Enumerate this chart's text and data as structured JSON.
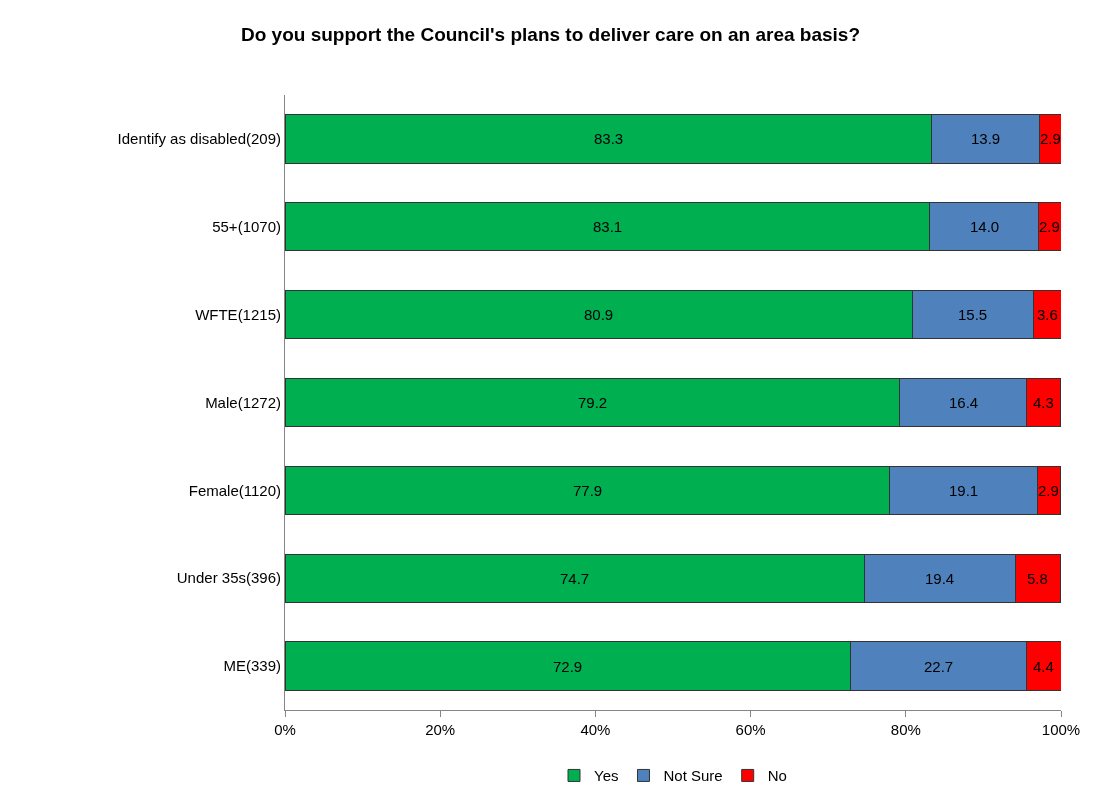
{
  "chart_data": {
    "type": "bar",
    "title": "Do you support the Council's plans to deliver care on an area basis?",
    "orientation": "horizontal",
    "stacked": true,
    "grid": false,
    "legend": "bottom",
    "categories": [
      "Identify as disabled(209)",
      "55+(1070)",
      "WFTE(1215)",
      "Male(1272)",
      "Female(1120)",
      "Under 35s(396)",
      "ME(339)"
    ],
    "series": [
      {
        "name": "Yes",
        "color": "#00b050",
        "values": [
          83.3,
          83.1,
          80.9,
          79.2,
          77.9,
          74.7,
          72.9
        ],
        "value_labels": [
          "83.3",
          "83.1",
          "80.9",
          "79.2",
          "77.9",
          "74.7",
          "72.9"
        ]
      },
      {
        "name": "Not Sure",
        "color": "#4f81bd",
        "values": [
          13.9,
          14.0,
          15.5,
          16.4,
          19.1,
          19.4,
          22.7
        ],
        "value_labels": [
          "13.9",
          "14.0",
          "15.5",
          "16.4",
          "19.1",
          "19.4",
          "22.7"
        ]
      },
      {
        "name": "No",
        "color": "#ff0000",
        "values": [
          2.9,
          2.9,
          3.6,
          4.3,
          2.9,
          5.8,
          4.4
        ],
        "value_labels": [
          "2.9",
          "2.9",
          "3.6",
          "4.3",
          "2.9",
          "5.8",
          "4.4"
        ]
      }
    ],
    "xlim": [
      0,
      100
    ],
    "xticks": [
      {
        "value": 0,
        "label": "0%"
      },
      {
        "value": 20,
        "label": "20%"
      },
      {
        "value": 40,
        "label": "40%"
      },
      {
        "value": 60,
        "label": "60%"
      },
      {
        "value": 80,
        "label": "80%"
      },
      {
        "value": 100,
        "label": "100%"
      }
    ]
  }
}
